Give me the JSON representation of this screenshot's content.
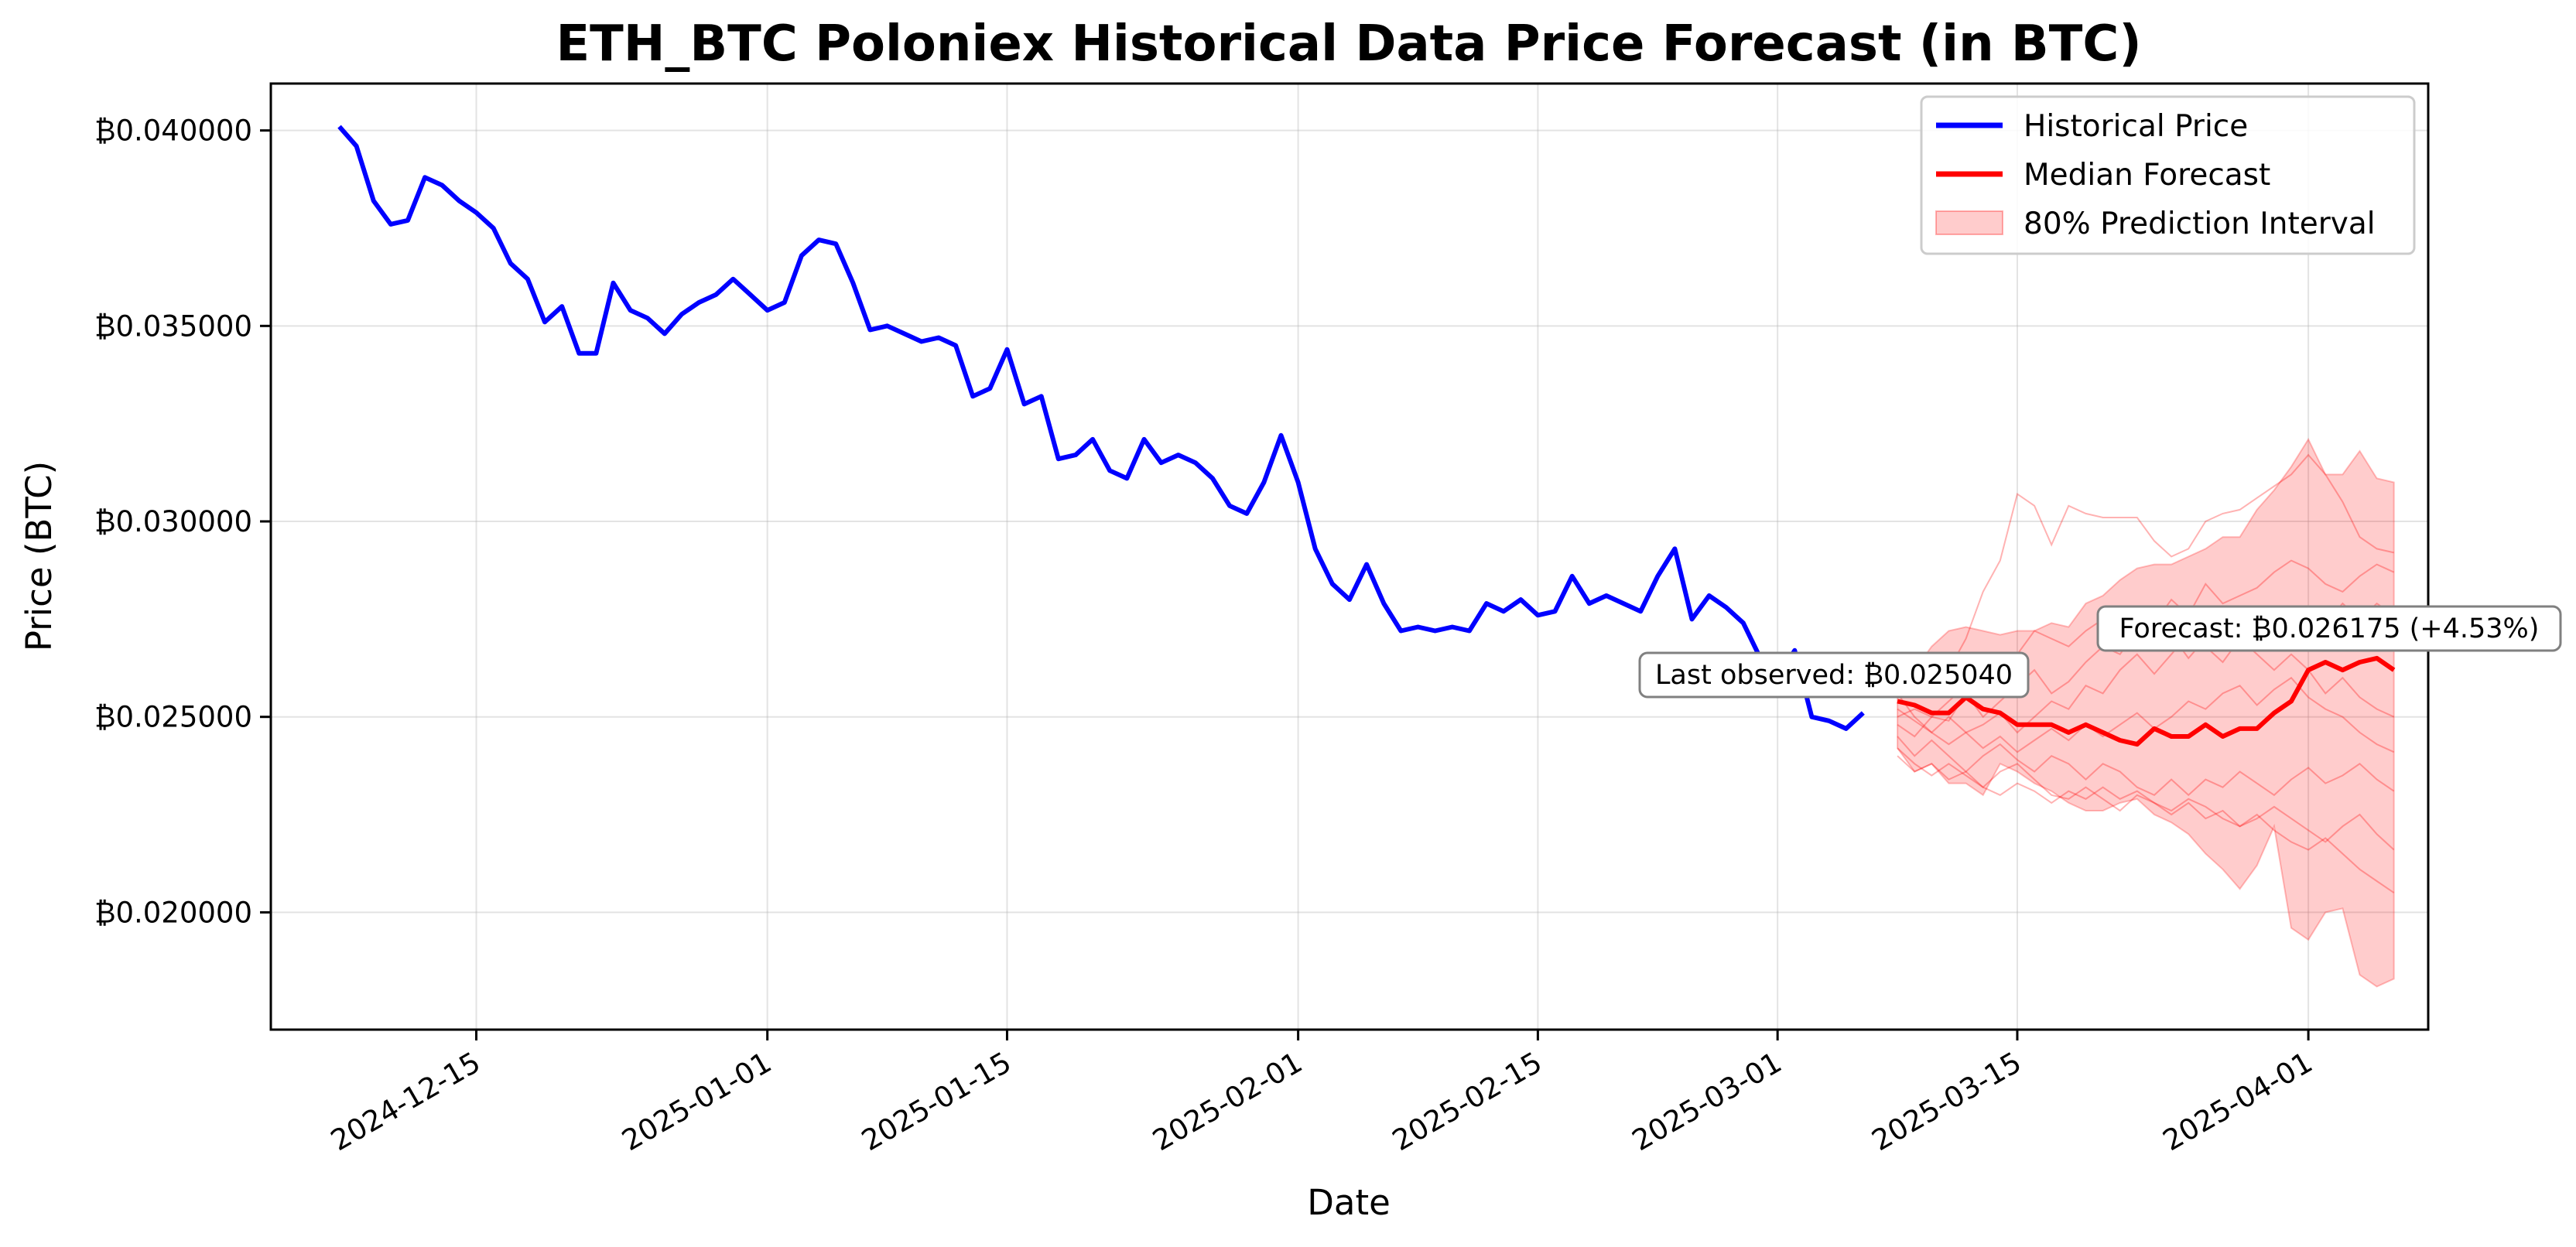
{
  "chart_data": {
    "type": "line",
    "title": "ETH_BTC Poloniex Historical Data Price Forecast (in BTC)",
    "xlabel": "Date",
    "ylabel": "Price (BTC)",
    "x_range": [
      "2024-12-03",
      "2025-04-08"
    ],
    "ylim": [
      0.017,
      0.0412
    ],
    "grid": true,
    "legend_position": "top-right",
    "x_ticks": [
      "2024-12-15",
      "2025-01-01",
      "2025-01-15",
      "2025-02-01",
      "2025-02-15",
      "2025-03-01",
      "2025-03-15",
      "2025-04-01"
    ],
    "y_ticks": [
      {
        "value": 0.02,
        "label": "₿0.020000"
      },
      {
        "value": 0.025,
        "label": "₿0.025000"
      },
      {
        "value": 0.03,
        "label": "₿0.030000"
      },
      {
        "value": 0.035,
        "label": "₿0.035000"
      },
      {
        "value": 0.04,
        "label": "₿0.040000"
      }
    ],
    "colors": {
      "historical": "#0000ff",
      "median": "#ff0000",
      "interval": "#ff0000",
      "paths": "#ff0000"
    },
    "legend": [
      "Historical Price",
      "Median Forecast",
      "80% Prediction Interval"
    ],
    "historical": {
      "name": "Historical Price",
      "start_date": "2024-12-07",
      "values": [
        0.0401,
        0.0396,
        0.0382,
        0.0376,
        0.0377,
        0.0388,
        0.0386,
        0.0382,
        0.0379,
        0.0375,
        0.0366,
        0.0362,
        0.0351,
        0.0355,
        0.0343,
        0.0343,
        0.0361,
        0.0354,
        0.0352,
        0.0348,
        0.0353,
        0.0356,
        0.0358,
        0.0362,
        0.0358,
        0.0354,
        0.0356,
        0.0368,
        0.0372,
        0.0371,
        0.0361,
        0.0349,
        0.035,
        0.0348,
        0.0346,
        0.0347,
        0.0345,
        0.0332,
        0.0334,
        0.0344,
        0.033,
        0.0332,
        0.0316,
        0.0317,
        0.0321,
        0.0313,
        0.0311,
        0.0321,
        0.0315,
        0.0317,
        0.0315,
        0.0311,
        0.0304,
        0.0302,
        0.031,
        0.0322,
        0.031,
        0.0293,
        0.0284,
        0.028,
        0.0289,
        0.0279,
        0.0272,
        0.0273,
        0.0272,
        0.0273,
        0.0272,
        0.0279,
        0.0277,
        0.028,
        0.0276,
        0.0277,
        0.0286,
        0.0279,
        0.0281,
        0.0279,
        0.0277,
        0.0286,
        0.0293,
        0.0275,
        0.0281,
        0.0278,
        0.0274,
        0.0265,
        0.026,
        0.0267,
        0.025,
        0.0249,
        0.0247,
        0.0251
      ]
    },
    "forecast": {
      "start_date": "2025-03-08",
      "median": {
        "name": "Median Forecast",
        "values": [
          0.0254,
          0.0253,
          0.0251,
          0.0251,
          0.0255,
          0.0252,
          0.0251,
          0.0248,
          0.0248,
          0.0248,
          0.0246,
          0.0248,
          0.0246,
          0.0244,
          0.0243,
          0.0247,
          0.0245,
          0.0245,
          0.0248,
          0.0245,
          0.0247,
          0.0247,
          0.0251,
          0.0254,
          0.0262,
          0.0264,
          0.0262,
          0.0264,
          0.0265,
          0.0262
        ]
      },
      "interval_80": {
        "name": "80% Prediction Interval",
        "upper": [
          0.0264,
          0.0262,
          0.0268,
          0.0272,
          0.0273,
          0.0272,
          0.0271,
          0.0272,
          0.0272,
          0.0274,
          0.0273,
          0.0279,
          0.0281,
          0.0285,
          0.0288,
          0.0289,
          0.0289,
          0.0291,
          0.0293,
          0.0296,
          0.0296,
          0.0303,
          0.0308,
          0.0314,
          0.0321,
          0.0312,
          0.0312,
          0.0318,
          0.0311,
          0.031
        ],
        "lower": [
          0.0242,
          0.0236,
          0.0238,
          0.0233,
          0.0233,
          0.023,
          0.0238,
          0.0236,
          0.0233,
          0.0231,
          0.0228,
          0.0226,
          0.0226,
          0.0228,
          0.0229,
          0.0225,
          0.0223,
          0.022,
          0.0215,
          0.0211,
          0.0206,
          0.0212,
          0.0222,
          0.0196,
          0.0193,
          0.02,
          0.0201,
          0.0184,
          0.0181,
          0.0183
        ]
      },
      "sample_paths": [
        [
          0.0262,
          0.0258,
          0.0265,
          0.0262,
          0.027,
          0.0282,
          0.029,
          0.0307,
          0.0304,
          0.0294,
          0.0304,
          0.0302,
          0.0301,
          0.0301,
          0.0301,
          0.0295,
          0.0291,
          0.0293,
          0.03,
          0.0302,
          0.0303,
          0.0306,
          0.0309,
          0.0312,
          0.0317,
          0.0312,
          0.0305,
          0.0296,
          0.0293,
          0.0292
        ],
        [
          0.025,
          0.0252,
          0.025,
          0.0254,
          0.0258,
          0.0262,
          0.026,
          0.0266,
          0.0272,
          0.027,
          0.0268,
          0.0272,
          0.0275,
          0.0276,
          0.027,
          0.0274,
          0.028,
          0.0276,
          0.0284,
          0.0279,
          0.0281,
          0.0283,
          0.0287,
          0.029,
          0.0288,
          0.0284,
          0.0282,
          0.0286,
          0.0289,
          0.0287
        ],
        [
          0.0248,
          0.0245,
          0.025,
          0.0249,
          0.0256,
          0.025,
          0.0254,
          0.0258,
          0.0262,
          0.0256,
          0.0259,
          0.0264,
          0.0268,
          0.0266,
          0.0272,
          0.0268,
          0.0271,
          0.0265,
          0.027,
          0.0275,
          0.027,
          0.0276,
          0.0273,
          0.0278,
          0.027,
          0.0274,
          0.0279,
          0.0275,
          0.0279,
          0.0276
        ],
        [
          0.0256,
          0.025,
          0.0246,
          0.025,
          0.0246,
          0.0248,
          0.0251,
          0.0246,
          0.025,
          0.0254,
          0.0252,
          0.0258,
          0.0256,
          0.0262,
          0.0266,
          0.0261,
          0.0266,
          0.0271,
          0.0268,
          0.0264,
          0.027,
          0.0266,
          0.0262,
          0.0266,
          0.0262,
          0.0256,
          0.026,
          0.0255,
          0.0252,
          0.025
        ],
        [
          0.0252,
          0.0249,
          0.0246,
          0.0243,
          0.0246,
          0.0242,
          0.0245,
          0.0241,
          0.0244,
          0.0247,
          0.0244,
          0.0248,
          0.0245,
          0.0248,
          0.0251,
          0.0247,
          0.025,
          0.0254,
          0.0252,
          0.0256,
          0.0258,
          0.0253,
          0.0257,
          0.026,
          0.0255,
          0.0252,
          0.025,
          0.0246,
          0.0243,
          0.0241
        ],
        [
          0.0245,
          0.024,
          0.0244,
          0.024,
          0.0236,
          0.024,
          0.0243,
          0.0239,
          0.0236,
          0.024,
          0.0238,
          0.0234,
          0.0238,
          0.0236,
          0.0232,
          0.023,
          0.0234,
          0.023,
          0.0234,
          0.0232,
          0.0236,
          0.0233,
          0.023,
          0.0234,
          0.0237,
          0.0233,
          0.0235,
          0.0238,
          0.0234,
          0.0231
        ],
        [
          0.0242,
          0.0238,
          0.0235,
          0.0238,
          0.0235,
          0.0232,
          0.0236,
          0.0238,
          0.0234,
          0.023,
          0.0229,
          0.0232,
          0.0229,
          0.0226,
          0.023,
          0.0228,
          0.0225,
          0.0228,
          0.0224,
          0.0226,
          0.0222,
          0.0224,
          0.0227,
          0.0224,
          0.0221,
          0.0218,
          0.0222,
          0.0225,
          0.022,
          0.0216
        ],
        [
          0.024,
          0.0236,
          0.0238,
          0.0234,
          0.0236,
          0.0232,
          0.023,
          0.0233,
          0.0231,
          0.0228,
          0.0231,
          0.0229,
          0.0232,
          0.0229,
          0.0231,
          0.0228,
          0.0226,
          0.0229,
          0.0227,
          0.0224,
          0.0222,
          0.0225,
          0.0221,
          0.0218,
          0.0216,
          0.0219,
          0.0215,
          0.0211,
          0.0208,
          0.0205
        ]
      ]
    },
    "annotations": {
      "last_observed": {
        "label": "Last observed: ₿0.025040",
        "date": "2025-03-07",
        "value": 0.02504
      },
      "forecast_end": {
        "label": "Forecast: ₿0.026175 (+4.53%)",
        "date": "2025-04-06",
        "value": 0.026175
      }
    }
  }
}
